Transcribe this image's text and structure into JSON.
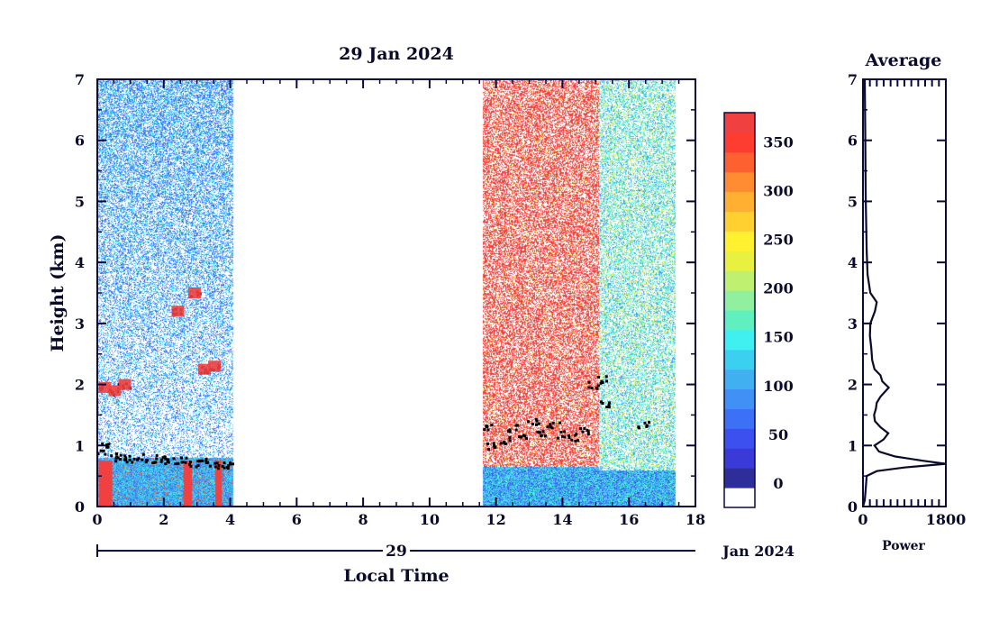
{
  "chart_data": [
    {
      "type": "heatmap",
      "title": "29 Jan 2024",
      "xlabel": "Local Time",
      "ylabel": "Height (km)",
      "xlim": [
        0,
        18
      ],
      "ylim": [
        0,
        7
      ],
      "x_ticks": [
        0,
        2,
        4,
        6,
        8,
        10,
        12,
        14,
        16,
        18
      ],
      "y_ticks": [
        0,
        1,
        2,
        3,
        4,
        5,
        6,
        7
      ],
      "date_axis": {
        "day_label": "29",
        "month_label": "Jan 2024"
      },
      "data_segments": [
        {
          "x_start": 0.0,
          "x_end": 4.1,
          "background": "low",
          "boundary_layer_top_km": 0.8
        },
        {
          "x_start": 11.6,
          "x_end": 15.1,
          "background": "high",
          "boundary_layer_top_km": 0.65
        },
        {
          "x_start": 15.1,
          "x_end": 17.4,
          "background": "mixed",
          "boundary_layer_top_km": 0.6
        }
      ],
      "cloud_base_points": [
        [
          0.1,
          0.9
        ],
        [
          0.3,
          1.0
        ],
        [
          0.5,
          0.85
        ],
        [
          0.7,
          0.8
        ],
        [
          1.0,
          0.8
        ],
        [
          1.3,
          0.82
        ],
        [
          1.6,
          0.78
        ],
        [
          1.9,
          0.8
        ],
        [
          2.2,
          0.75
        ],
        [
          2.5,
          0.78
        ],
        [
          2.8,
          0.72
        ],
        [
          3.1,
          0.75
        ],
        [
          3.4,
          0.72
        ],
        [
          3.7,
          0.7
        ],
        [
          4.0,
          0.68
        ],
        [
          0.2,
          1.95
        ],
        [
          0.5,
          1.9
        ],
        [
          0.8,
          2.0
        ],
        [
          2.4,
          3.2
        ],
        [
          2.9,
          3.5
        ],
        [
          3.2,
          2.25
        ],
        [
          3.5,
          2.3
        ],
        [
          11.7,
          1.3
        ],
        [
          11.9,
          1.0
        ],
        [
          12.2,
          1.1
        ],
        [
          12.5,
          1.3
        ],
        [
          12.8,
          1.15
        ],
        [
          13.1,
          1.4
        ],
        [
          13.4,
          1.2
        ],
        [
          13.7,
          1.35
        ],
        [
          14.0,
          1.2
        ],
        [
          14.3,
          1.15
        ],
        [
          14.6,
          1.25
        ],
        [
          14.9,
          2.0
        ],
        [
          15.1,
          2.1
        ],
        [
          15.3,
          1.7
        ],
        [
          16.4,
          1.35
        ]
      ],
      "colorbar": {
        "ticks": [
          0,
          50,
          100,
          150,
          200,
          250,
          300,
          350
        ],
        "colors": [
          "#ffffff",
          "#2e2e9a",
          "#3a3ad8",
          "#3c50f0",
          "#3c70f5",
          "#4090f5",
          "#40b0f0",
          "#3cd0f0",
          "#40f0f0",
          "#60f0c0",
          "#90f0a0",
          "#c0f070",
          "#e8f040",
          "#fff030",
          "#ffd030",
          "#ffb030",
          "#ff8c30",
          "#ff6030",
          "#ff3c30",
          "#f04040"
        ]
      }
    },
    {
      "type": "line",
      "title": "Average",
      "xlabel": "Power",
      "ylabel": "",
      "xlim": [
        0,
        1800
      ],
      "ylim": [
        0,
        7
      ],
      "x_ticks": [
        0,
        1800
      ],
      "y_ticks": [
        0,
        1,
        2,
        3,
        4,
        5,
        6,
        7
      ],
      "series": [
        {
          "points": [
            [
              0,
              0.0
            ],
            [
              40,
              0.1
            ],
            [
              60,
              0.3
            ],
            [
              80,
              0.5
            ],
            [
              300,
              0.58
            ],
            [
              900,
              0.64
            ],
            [
              1800,
              0.7
            ],
            [
              1300,
              0.75
            ],
            [
              700,
              0.82
            ],
            [
              350,
              0.9
            ],
            [
              250,
              1.0
            ],
            [
              450,
              1.1
            ],
            [
              550,
              1.2
            ],
            [
              380,
              1.3
            ],
            [
              260,
              1.4
            ],
            [
              240,
              1.5
            ],
            [
              280,
              1.6
            ],
            [
              300,
              1.7
            ],
            [
              380,
              1.8
            ],
            [
              560,
              1.95
            ],
            [
              420,
              2.05
            ],
            [
              380,
              2.15
            ],
            [
              250,
              2.25
            ],
            [
              200,
              2.4
            ],
            [
              180,
              2.6
            ],
            [
              150,
              2.8
            ],
            [
              160,
              3.0
            ],
            [
              260,
              3.2
            ],
            [
              300,
              3.35
            ],
            [
              160,
              3.5
            ],
            [
              100,
              3.8
            ],
            [
              80,
              4.2
            ],
            [
              70,
              4.6
            ],
            [
              60,
              5.0
            ],
            [
              55,
              5.5
            ],
            [
              50,
              6.0
            ],
            [
              45,
              6.5
            ],
            [
              40,
              7.0
            ]
          ]
        }
      ]
    }
  ]
}
